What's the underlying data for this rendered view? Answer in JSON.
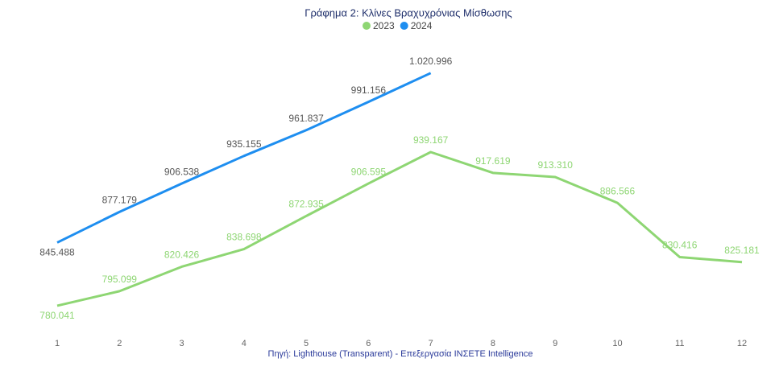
{
  "chart_data": {
    "type": "line",
    "title": "Γράφημα 2: Κλίνες Βραχυχρόνιας Μίσθωσης",
    "source": "Πηγή: Lighthouse (Transparent) - Επεξεργασία ΙΝΣΕΤΕ Intelligence",
    "categories": [
      "1",
      "2",
      "3",
      "4",
      "5",
      "6",
      "7",
      "8",
      "9",
      "10",
      "11",
      "12"
    ],
    "ylim": [
      750000,
      1050000
    ],
    "series": [
      {
        "name": "2023",
        "color": "#8ed673",
        "label_color": "#8ed673",
        "values": [
          780041,
          795099,
          820426,
          838698,
          872935,
          906595,
          939167,
          917619,
          913310,
          886566,
          830416,
          825181
        ],
        "value_labels": [
          "780.041",
          "795.099",
          "820.426",
          "838.698",
          "872.935",
          "906.595",
          "939.167",
          "917.619",
          "913.310",
          "886.566",
          "830.416",
          "825.181"
        ]
      },
      {
        "name": "2024",
        "color": "#1e8ef0",
        "label_color": "#555555",
        "values": [
          845488,
          877179,
          906538,
          935155,
          961837,
          991156,
          1020996,
          null,
          null,
          null,
          null,
          null
        ],
        "value_labels": [
          "845.488",
          "877.179",
          "906.538",
          "935.155",
          "961.837",
          "991.156",
          "1.020.996",
          null,
          null,
          null,
          null,
          null
        ]
      }
    ]
  }
}
